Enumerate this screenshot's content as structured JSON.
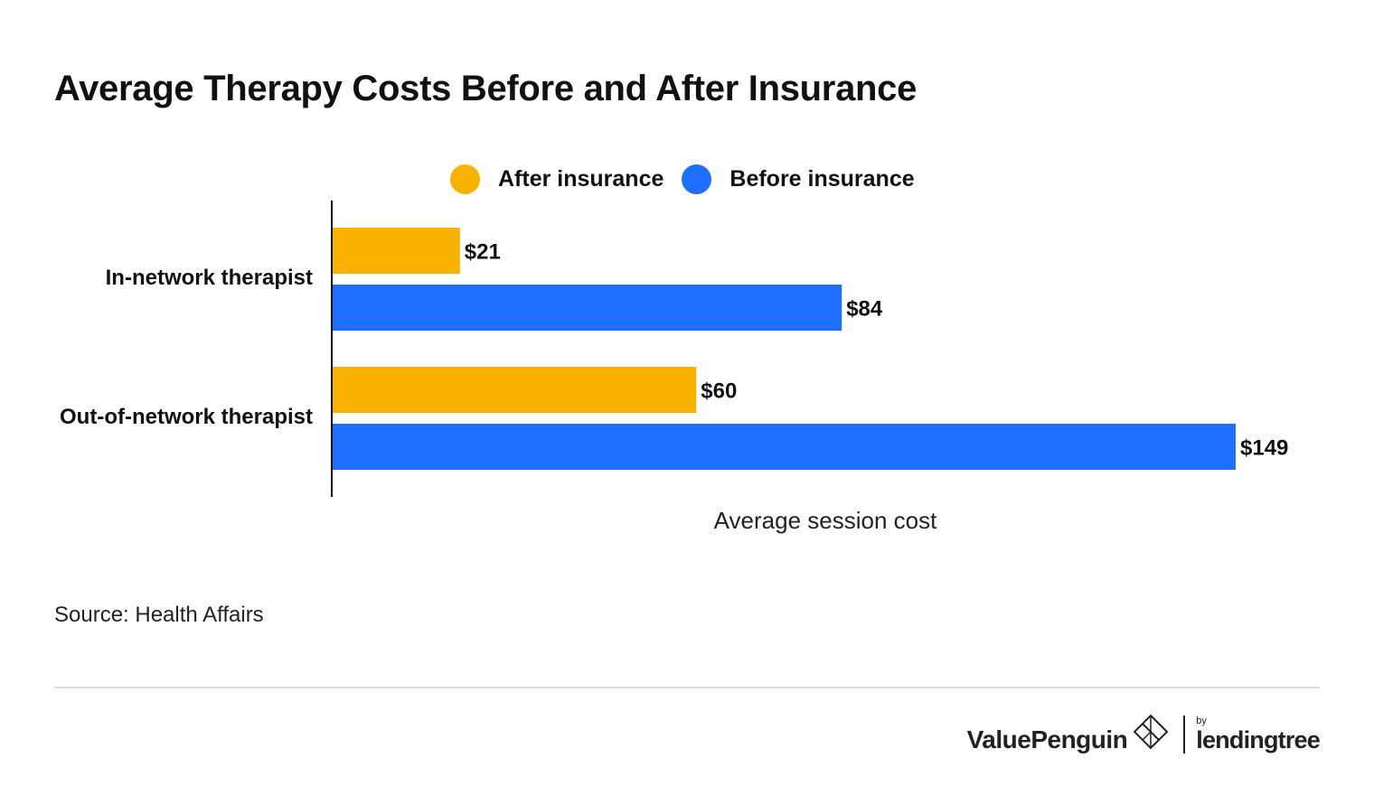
{
  "title": "Average Therapy Costs Before and After Insurance",
  "legend": [
    {
      "label": "After insurance",
      "color": "#F9B200"
    },
    {
      "label": "Before insurance",
      "color": "#1F6FFF"
    }
  ],
  "source": "Source: Health Affairs",
  "brand": {
    "name": "ValuePenguin",
    "by": "by",
    "partner": "lendingtree",
    "logo_icon": "valuepenguin-logo-icon"
  },
  "chart_data": {
    "type": "bar",
    "orientation": "horizontal",
    "title": "Average Therapy Costs Before and After Insurance",
    "xlabel": "Average session cost",
    "ylabel": "",
    "categories": [
      "In-network therapist",
      "Out-of-network therapist"
    ],
    "series": [
      {
        "name": "After insurance",
        "color": "#F9B200",
        "values": [
          21,
          60
        ],
        "labels": [
          "$21",
          "$60"
        ]
      },
      {
        "name": "Before insurance",
        "color": "#1F6FFF",
        "values": [
          84,
          149
        ],
        "labels": [
          "$84",
          "$149"
        ]
      }
    ],
    "xlim": [
      0,
      149
    ],
    "grid": false,
    "legend_position": "top-center"
  }
}
